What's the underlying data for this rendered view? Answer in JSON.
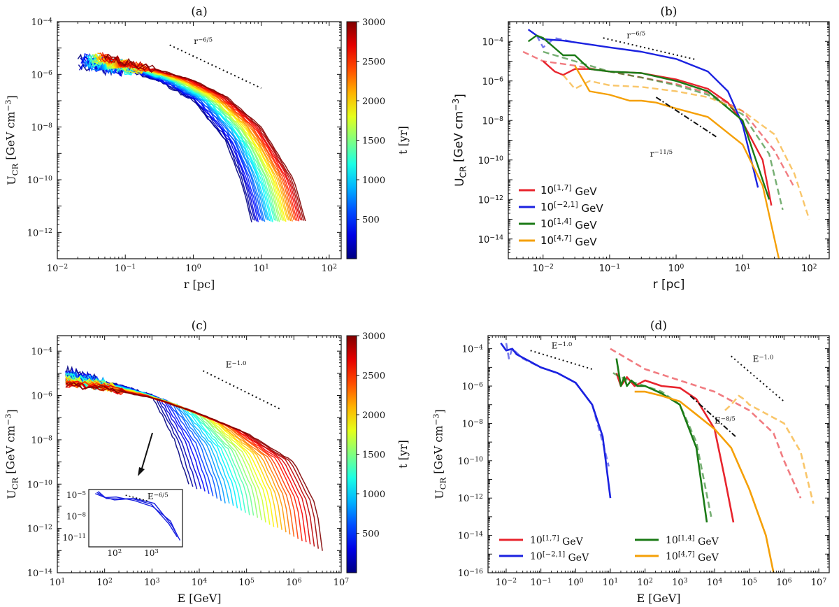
{
  "figure": {
    "description_free": true
  },
  "chart_data": [
    {
      "id": "a",
      "title": "(a)",
      "type": "line",
      "xscale": "log",
      "yscale": "log",
      "xlim": [
        0.01,
        150
      ],
      "ylim": [
        1e-13,
        0.0001
      ],
      "xlabel": "r [pc]",
      "ylabel": "U_CR [GeV cm^-3]",
      "x_ticks": [
        "10^-2",
        "10^-1",
        "10^0",
        "10^1",
        "10^2"
      ],
      "y_ticks": [
        "10^-12",
        "10^-10",
        "10^-8",
        "10^-6",
        "10^-4"
      ],
      "colorbar": {
        "label": "t [yr]",
        "min": 0,
        "max": 3000,
        "ticks": [
          "500",
          "1000",
          "1500",
          "2000",
          "2500",
          "3000"
        ]
      },
      "family": {
        "count": 34,
        "t_min": 100,
        "t_max": 3000,
        "description": "U_CR(r) profiles at successive times t, colored by t",
        "profile_early": {
          "t": 100,
          "r": [
            0.02,
            0.1,
            0.3,
            1,
            3,
            5,
            8
          ],
          "U": [
            3e-06,
            1.5e-06,
            6e-07,
            1e-07,
            3e-09,
            1e-10,
            1e-12
          ]
        },
        "profile_late": {
          "t": 3000,
          "r": [
            0.05,
            0.1,
            0.3,
            1,
            3,
            10,
            30,
            50
          ],
          "U": [
            5e-06,
            3e-06,
            1.5e-06,
            6e-07,
            1.5e-07,
            1e-08,
            1e-10,
            1e-12
          ]
        }
      },
      "annotations": [
        {
          "text": "r^-6/5",
          "slope": -1.2
        }
      ]
    },
    {
      "id": "b",
      "title": "(b)",
      "type": "line",
      "xscale": "log",
      "yscale": "log",
      "xlim": [
        0.003,
        200
      ],
      "ylim": [
        1e-15,
        0.001
      ],
      "xlabel": "r [pc]",
      "ylabel": "U_CR [GeV cm^-3]",
      "x_ticks": [
        "10^-2",
        "10^-1",
        "10^0",
        "10^1",
        "10^2"
      ],
      "y_ticks": [
        "10^-14",
        "10^-12",
        "10^-10",
        "10^-8",
        "10^-6",
        "10^-4"
      ],
      "series": [
        {
          "name": "10^[1,7] GeV",
          "color": "#e8242d",
          "style": "solid",
          "x": [
            0.01,
            0.015,
            0.02,
            0.03,
            0.05,
            0.1,
            0.3,
            1,
            3,
            6,
            10,
            20,
            27
          ],
          "y": [
            1e-05,
            3e-06,
            2e-06,
            4e-06,
            4e-06,
            3e-06,
            2.5e-06,
            1.2e-06,
            4e-07,
            8e-08,
            8e-09,
            1e-10,
            5e-13
          ]
        },
        {
          "name": "10^[1,7] GeV dashed",
          "color": "#e8242d",
          "style": "dashed",
          "x": [
            0.005,
            0.01,
            0.03,
            0.1,
            0.3,
            1,
            3,
            10,
            30,
            60
          ],
          "y": [
            3e-05,
            1e-05,
            6e-06,
            3e-06,
            1.5e-06,
            7e-07,
            2.5e-07,
            3e-08,
            3e-10,
            4e-12
          ]
        },
        {
          "name": "10^[-2,1] GeV",
          "color": "#1b22e0",
          "style": "solid",
          "x": [
            0.006,
            0.008,
            0.01,
            0.02,
            0.05,
            0.1,
            0.3,
            1,
            3,
            6,
            10,
            17
          ],
          "y": [
            0.0004,
            0.0002,
            0.00013,
            0.00011,
            7e-05,
            5e-05,
            3e-05,
            1.3e-05,
            3e-06,
            3e-07,
            6e-09,
            4e-12
          ]
        },
        {
          "name": "10^[-2,1] GeV dashed",
          "color": "#1b22e0",
          "style": "dashed",
          "x": [
            0.008,
            0.01,
            0.015,
            0.03
          ],
          "y": [
            0.0002,
            5e-05,
            0.00015,
            9e-05
          ]
        },
        {
          "name": "10^[1,4] GeV",
          "color": "#1b7a16",
          "style": "solid",
          "x": [
            0.006,
            0.008,
            0.01,
            0.02,
            0.03,
            0.05,
            0.1,
            0.3,
            1,
            3,
            10,
            25
          ],
          "y": [
            0.0001,
            0.0002,
            0.00015,
            2e-05,
            2e-05,
            4e-06,
            3e-06,
            2.5e-06,
            1e-06,
            3e-07,
            1e-08,
            1e-12
          ]
        },
        {
          "name": "10^[1,4] GeV dashed",
          "color": "#1b7a16",
          "style": "dashed",
          "x": [
            0.01,
            0.03,
            0.1,
            0.3,
            1,
            3,
            10,
            25,
            40
          ],
          "y": [
            3e-05,
            1e-05,
            3e-06,
            1.5e-06,
            6e-07,
            2e-07,
            2e-08,
            2e-10,
            3e-13
          ]
        },
        {
          "name": "10^[4,7] GeV",
          "color": "#f5a007",
          "style": "solid",
          "x": [
            0.03,
            0.05,
            0.1,
            0.2,
            0.3,
            0.5,
            1,
            3,
            10,
            20,
            35
          ],
          "y": [
            6e-06,
            3e-07,
            2e-07,
            1e-07,
            1e-07,
            8e-08,
            4e-08,
            1.5e-08,
            6e-10,
            5e-12,
            1e-15
          ]
        },
        {
          "name": "10^[4,7] GeV dashed",
          "color": "#f5a007",
          "style": "dashed",
          "x": [
            0.02,
            0.03,
            0.05,
            0.1,
            0.3,
            1,
            3,
            10,
            30,
            60,
            100
          ],
          "y": [
            2e-06,
            4e-07,
            1e-06,
            6e-07,
            5e-07,
            3e-07,
            1.5e-07,
            3e-08,
            2e-09,
            2e-11,
            1e-13
          ]
        }
      ],
      "legend": [
        "10^[1,7] GeV",
        "10^[-2,1] GeV",
        "10^[1,4] GeV",
        "10^[4,7] GeV"
      ],
      "legend_position": "lower-left",
      "annotations": [
        {
          "text": "r^-6/5",
          "slope": -1.2
        },
        {
          "text": "r^-11/5",
          "slope": -2.2
        }
      ]
    },
    {
      "id": "c",
      "title": "(c)",
      "type": "line",
      "xscale": "log",
      "yscale": "log",
      "xlim": [
        10,
        10000000.0
      ],
      "ylim": [
        1e-14,
        0.0005
      ],
      "xlabel": "E [GeV]",
      "ylabel": "U_CR [GeV cm^-3]",
      "x_ticks": [
        "10^1",
        "10^2",
        "10^3",
        "10^4",
        "10^5",
        "10^6",
        "10^7"
      ],
      "y_ticks": [
        "10^-14",
        "10^-12",
        "10^-10",
        "10^-8",
        "10^-6",
        "10^-4"
      ],
      "colorbar": {
        "label": "t [yr]",
        "min": 0,
        "max": 3000,
        "ticks": [
          "500",
          "1000",
          "1500",
          "2000",
          "2500",
          "3000"
        ]
      },
      "family": {
        "count": 34,
        "t_min": 100,
        "t_max": 3000,
        "description": "CR energy spectra at successive times t, colored by t",
        "spectrum_early": {
          "t": 100,
          "E": [
            15,
            50,
            200,
            1000,
            3000,
            6000
          ],
          "U": [
            1e-05,
            5e-06,
            3e-06,
            1e-06,
            1e-08,
            1e-10
          ]
        },
        "spectrum_late": {
          "t": 3000,
          "E": [
            15,
            100,
            1000,
            10000.0,
            100000.0,
            1000000.0,
            3000000.0,
            4000000.0
          ],
          "U": [
            3e-06,
            2e-06,
            8e-07,
            1.5e-07,
            2e-08,
            1e-09,
            1e-11,
            1e-13
          ]
        }
      },
      "annotations": [
        {
          "text": "E^-1.0",
          "slope": -1.0
        }
      ],
      "inset": {
        "x_ticks": [
          "10^2",
          "10^3"
        ],
        "y_ticks": [
          "10^-5",
          "10^-8",
          "10^-11"
        ],
        "annotation": "E^-6/5",
        "E": [
          30,
          50,
          100,
          300,
          1000,
          3000,
          5000
        ],
        "U": [
          2e-05,
          5e-06,
          4e-06,
          2e-06,
          5e-07,
          2e-09,
          1e-11
        ]
      }
    },
    {
      "id": "d",
      "title": "(d)",
      "type": "line",
      "xscale": "log",
      "yscale": "log",
      "xlim": [
        0.003,
        20000000.0
      ],
      "ylim": [
        1e-16,
        0.0005
      ],
      "xlabel": "E [GeV]",
      "ylabel": "U_CR [GeV cm^-3]",
      "x_ticks": [
        "10^-2",
        "10^-1",
        "10^0",
        "10^1",
        "10^2",
        "10^3",
        "10^4",
        "10^5",
        "10^6",
        "10^7"
      ],
      "y_ticks": [
        "10^-16",
        "10^-14",
        "10^-12",
        "10^-10",
        "10^-8",
        "10^-6",
        "10^-4"
      ],
      "series": [
        {
          "name": "10^[-2,1] GeV",
          "color": "#1b22e0",
          "style": "solid",
          "x": [
            0.007,
            0.01,
            0.015,
            0.02,
            0.05,
            0.1,
            0.3,
            1,
            3,
            6,
            10
          ],
          "y": [
            0.0002,
            8e-05,
            0.0001,
            5e-05,
            2e-05,
            1e-05,
            5e-06,
            1.5e-06,
            1e-07,
            2e-09,
            1e-12
          ]
        },
        {
          "name": "10^[-2,1] GeV dashed",
          "color": "#1b22e0",
          "style": "dashed",
          "x": [
            0.01,
            0.012,
            0.015,
            0.03,
            0.1,
            0.3,
            1,
            3,
            6,
            9
          ],
          "y": [
            0.0002,
            3e-05,
            0.0001,
            3e-05,
            1e-05,
            5e-06,
            1.5e-06,
            1e-07,
            1e-09,
            5e-11
          ]
        },
        {
          "name": "10^[1,7] GeV",
          "color": "#e8242d",
          "style": "solid",
          "x": [
            15,
            20,
            30,
            50,
            100,
            300,
            1000,
            3000,
            10000,
            20000,
            35000
          ],
          "y": [
            5e-06,
            1e-06,
            3e-06,
            1e-06,
            2e-06,
            1e-06,
            8e-07,
            2e-07,
            5e-09,
            1e-11,
            5e-14
          ]
        },
        {
          "name": "10^[1,7] GeV dashed",
          "color": "#e8242d",
          "style": "dashed",
          "x": [
            10,
            30,
            100,
            1000,
            10000.0,
            100000.0,
            500000.0,
            1000000.0,
            3000000.0
          ],
          "y": [
            0.0001,
            3e-05,
            8e-06,
            2e-06,
            5e-07,
            5e-08,
            3e-09,
            1e-10,
            1e-12
          ]
        },
        {
          "name": "10^[1,4] GeV",
          "color": "#1b7a16",
          "style": "solid",
          "x": [
            15,
            20,
            25,
            30,
            40,
            60,
            100,
            300,
            1000,
            3000,
            6000
          ],
          "y": [
            3e-05,
            1e-06,
            3e-06,
            1e-06,
            2e-06,
            1e-06,
            1e-06,
            4e-07,
            1e-07,
            5e-10,
            5e-14
          ]
        },
        {
          "name": "10^[1,4] GeV dashed",
          "color": "#1b7a16",
          "style": "dashed",
          "x": [
            12,
            20,
            50,
            100,
            300,
            1000,
            3000,
            8000
          ],
          "y": [
            5e-06,
            3e-06,
            1.5e-06,
            1e-06,
            5e-07,
            1e-07,
            1e-09,
            1e-13
          ]
        },
        {
          "name": "10^[4,7] GeV",
          "color": "#f5a007",
          "style": "solid",
          "x": [
            50,
            100,
            300,
            1000,
            3000,
            10000.0,
            30000.0,
            100000.0,
            300000.0,
            500000.0
          ],
          "y": [
            5e-07,
            5e-07,
            3e-07,
            1.5e-07,
            3e-08,
            5e-09,
            5e-10,
            3e-12,
            1e-14,
            1e-16
          ]
        },
        {
          "name": "10^[4,7] GeV dashed",
          "color": "#f5a007",
          "style": "dashed",
          "x": [
            20000.0,
            30000.0,
            50000.0,
            70000.0,
            100000.0,
            1000000.0,
            3000000.0,
            7000000.0
          ],
          "y": [
            5e-08,
            1e-07,
            3e-07,
            2e-07,
            1e-07,
            1e-08,
            3e-10,
            5e-13
          ]
        }
      ],
      "legend": [
        "10^[1,7] GeV",
        "10^[-2,1] GeV",
        "10^[1,4] GeV",
        "10^[4,7] GeV"
      ],
      "legend_position": "bottom-left",
      "annotations": [
        {
          "text": "E^-1.0",
          "slope": -1.0
        },
        {
          "text": "E^-1.0",
          "slope": -1.0
        },
        {
          "text": "E^-8/5",
          "slope": -1.6
        }
      ]
    }
  ]
}
